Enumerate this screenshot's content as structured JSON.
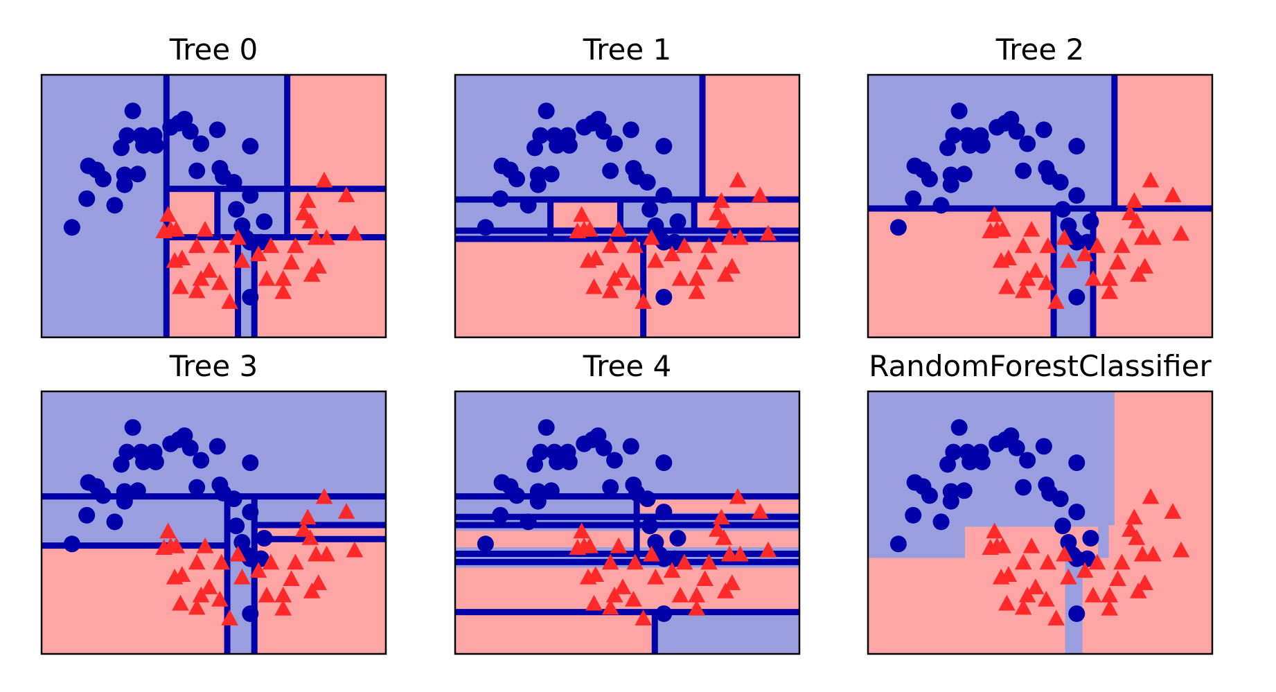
{
  "chart_data": {
    "type": "scatter",
    "xlim": [
      -1.5,
      2.69
    ],
    "ylim": [
      -1.0,
      2.2
    ],
    "background": "#9a9ede",
    "series": [
      {
        "marker": "circle",
        "color": "#0000aa",
        "x": [
          -1.13,
          -0.95,
          -0.93,
          -0.83,
          -0.75,
          -0.61,
          -0.53,
          -0.49,
          -0.49,
          -0.46,
          -0.39,
          -0.33,
          -0.29,
          -0.26,
          -0.13,
          -0.11,
          0.07,
          0.17,
          0.24,
          0.31,
          0.39,
          0.44,
          0.64,
          0.67,
          0.71,
          0.84,
          0.87,
          0.94,
          1.04,
          1.04,
          1.04,
          1.04,
          1.21,
          0.99,
          1.17
        ],
        "values": [
          0.34,
          0.69,
          1.09,
          1.04,
          0.93,
          0.61,
          1.31,
          0.86,
          0.98,
          1.46,
          1.76,
          0.99,
          1.46,
          1.34,
          1.46,
          1.34,
          1.56,
          1.61,
          1.66,
          1.51,
          1.03,
          1.36,
          1.53,
          1.06,
          0.96,
          0.89,
          0.56,
          0.36,
          1.33,
          0.73,
          0.16,
          -0.51,
          0.41,
          0.21,
          0.16
        ]
      },
      {
        "marker": "triangle",
        "color": "#ff2929",
        "x": [
          0.04,
          0.07,
          -0.01,
          0.14,
          0.12,
          0.21,
          0.19,
          0.39,
          0.44,
          0.49,
          0.39,
          0.54,
          0.67,
          0.69,
          0.79,
          0.89,
          0.94,
          1.14,
          1.24,
          1.29,
          1.44,
          1.44,
          1.54,
          1.59,
          1.69,
          1.74,
          1.79,
          1.84,
          1.87,
          1.94,
          1.97,
          2.21,
          2.31,
          1.77
        ],
        "values": [
          0.49,
          0.31,
          0.29,
          0.31,
          -0.07,
          -0.04,
          -0.39,
          0.11,
          -0.29,
          0.31,
          -0.44,
          -0.19,
          -0.34,
          0.11,
          -0.57,
          0.21,
          -0.07,
          0.01,
          -0.29,
          0.11,
          -0.29,
          -0.45,
          -0.09,
          0.11,
          0.51,
          0.66,
          -0.24,
          0.21,
          -0.14,
          0.91,
          0.21,
          0.73,
          0.26,
          0.41
        ]
      }
    ],
    "region_color": "#ffa5a5",
    "split_color": "#0000aa",
    "panels": [
      {
        "title": "Tree 0",
        "regions": [
          [
            1.49,
            2.69,
            0.81,
            2.2
          ],
          [
            0.02,
            0.64,
            0.22,
            0.81
          ],
          [
            1.49,
            2.69,
            0.22,
            0.81
          ],
          [
            0.02,
            0.89,
            -1.0,
            0.22
          ],
          [
            1.09,
            2.69,
            -1.0,
            0.22
          ]
        ],
        "splits": [
          [
            0.02,
            0.02,
            -1.0,
            2.2
          ],
          [
            1.49,
            1.49,
            0.22,
            2.2
          ],
          [
            0.02,
            2.69,
            0.81,
            0.81
          ],
          [
            0.02,
            2.69,
            0.22,
            0.22
          ],
          [
            0.64,
            0.64,
            0.22,
            0.81
          ],
          [
            0.89,
            0.89,
            -1.0,
            0.22
          ],
          [
            1.09,
            1.09,
            -1.0,
            0.22
          ]
        ]
      },
      {
        "title": "Tree 1",
        "regions": [
          [
            1.51,
            2.69,
            0.68,
            2.2
          ],
          [
            -0.34,
            0.51,
            0.3,
            0.68
          ],
          [
            1.41,
            2.69,
            0.3,
            0.68
          ],
          [
            -1.5,
            2.69,
            -1.0,
            0.2
          ]
        ],
        "splits": [
          [
            1.51,
            1.51,
            0.68,
            2.2
          ],
          [
            -1.5,
            2.69,
            0.68,
            0.68
          ],
          [
            -1.5,
            2.69,
            0.3,
            0.3
          ],
          [
            -1.5,
            2.69,
            0.2,
            0.2
          ],
          [
            -0.34,
            -0.34,
            0.2,
            0.68
          ],
          [
            0.51,
            0.51,
            0.2,
            0.68
          ],
          [
            1.41,
            1.41,
            0.3,
            0.68
          ],
          [
            0.79,
            0.79,
            -1.0,
            0.2
          ]
        ]
      },
      {
        "title": "Tree 2",
        "regions": [
          [
            1.5,
            2.69,
            0.57,
            2.2
          ],
          [
            -1.5,
            0.76,
            -1.0,
            0.57
          ],
          [
            1.24,
            2.69,
            -1.0,
            0.57
          ]
        ],
        "splits": [
          [
            1.5,
            1.5,
            0.57,
            2.2
          ],
          [
            -1.5,
            2.69,
            0.57,
            0.57
          ],
          [
            0.76,
            0.76,
            -1.0,
            0.57
          ],
          [
            1.24,
            1.24,
            -1.0,
            0.57
          ]
        ]
      },
      {
        "title": "Tree 3",
        "regions": [
          [
            -1.5,
            0.76,
            -1.0,
            0.32
          ],
          [
            1.09,
            2.69,
            -1.0,
            0.57
          ]
        ],
        "splits": [
          [
            -1.5,
            2.69,
            0.92,
            0.92
          ],
          [
            -1.5,
            0.76,
            0.32,
            0.32
          ],
          [
            0.76,
            0.76,
            -1.0,
            0.92
          ],
          [
            1.09,
            1.09,
            -1.0,
            0.92
          ],
          [
            1.09,
            2.69,
            0.57,
            0.57
          ],
          [
            1.09,
            2.69,
            0.4,
            0.4
          ]
        ]
      },
      {
        "title": "Tree 4",
        "regions": [
          [
            0.71,
            2.69,
            0.72,
            0.92
          ],
          [
            -1.5,
            2.69,
            0.3,
            0.5
          ],
          [
            -1.5,
            2.69,
            -0.48,
            0.05
          ],
          [
            -1.5,
            0.93,
            -1.0,
            -0.5
          ]
        ],
        "splits": [
          [
            -1.5,
            2.69,
            0.92,
            0.92
          ],
          [
            -1.5,
            2.69,
            0.67,
            0.67
          ],
          [
            -1.5,
            2.69,
            0.57,
            0.57
          ],
          [
            -1.5,
            2.69,
            0.22,
            0.22
          ],
          [
            -1.5,
            2.69,
            0.12,
            0.12
          ],
          [
            -1.5,
            2.69,
            -0.49,
            -0.49
          ],
          [
            0.93,
            0.93,
            -1.0,
            -0.49
          ],
          [
            0.71,
            0.71,
            0.12,
            0.92
          ]
        ]
      },
      {
        "title": "RandomForestClassifier",
        "regions": [
          [
            1.5,
            2.69,
            0.57,
            2.2
          ],
          [
            1.43,
            2.69,
            0.17,
            0.57
          ],
          [
            -0.32,
            1.3,
            0.17,
            0.55
          ],
          [
            -1.5,
            0.9,
            -1.0,
            0.17
          ],
          [
            1.11,
            2.69,
            -1.0,
            0.17
          ]
        ],
        "splits": []
      }
    ]
  }
}
